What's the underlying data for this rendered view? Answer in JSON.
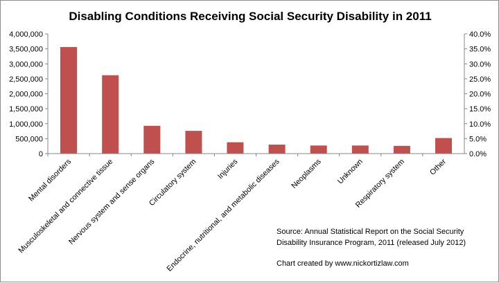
{
  "chart_data": {
    "type": "bar",
    "title": "Disabling Conditions Receiving Social Security Disability in 2011",
    "categories": [
      "Mental disorders",
      "Musculoskeletal and connective tissue",
      "Nervous system and sense organs",
      "Circulatory system",
      "Injuries",
      "Endocrine, nutritional, and metabolic diseases",
      "Neoplasms",
      "Unknown",
      "Respiratory system",
      "Other"
    ],
    "values": [
      3560000,
      2620000,
      930000,
      760000,
      380000,
      300000,
      270000,
      270000,
      260000,
      520000
    ],
    "ylim": [
      0,
      4000000
    ],
    "y_ticks": [
      "0",
      "500,000",
      "1,000,000",
      "1,500,000",
      "2,000,000",
      "2,500,000",
      "3,000,000",
      "3,500,000",
      "4,000,000"
    ],
    "y2lim": [
      0,
      40
    ],
    "y2_ticks": [
      "0.0%",
      "5.0%",
      "10.0%",
      "15.0%",
      "20.0%",
      "25.0%",
      "30.0%",
      "35.0%",
      "40.0%"
    ],
    "bar_color": "#c0504d",
    "grid": false,
    "annotations": {
      "source_line1": "Source: Annual Statistical Report on the Social Security",
      "source_line2": "Disability Insurance Program, 2011 (released July 2012)",
      "credit": "Chart created by www.nickortizlaw.com"
    }
  }
}
